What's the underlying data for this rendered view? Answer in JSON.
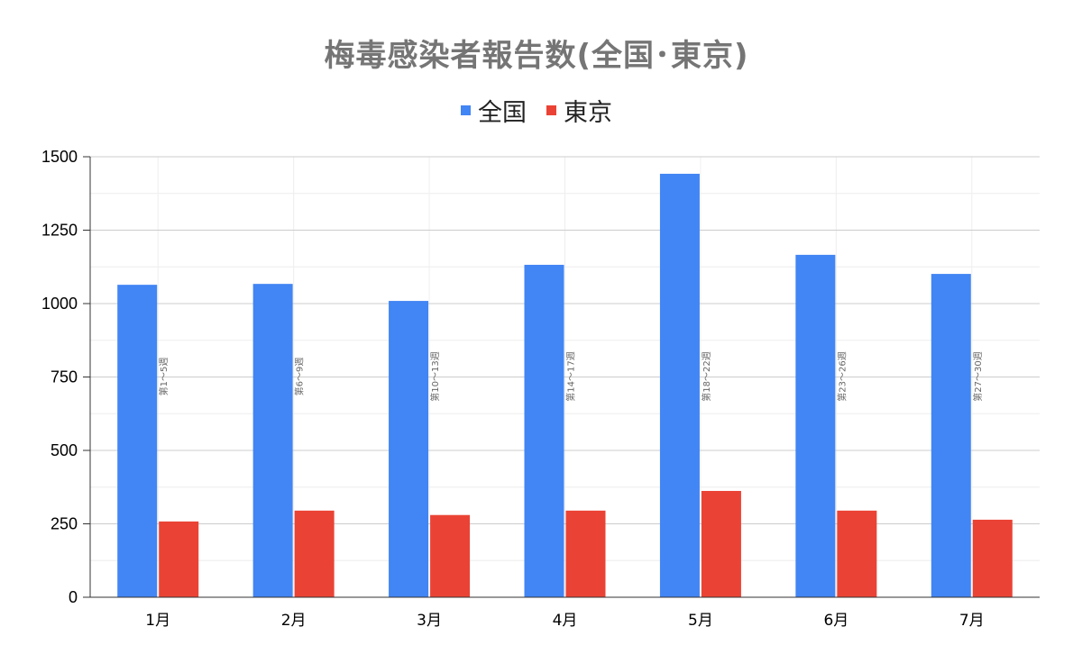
{
  "chart_data": {
    "type": "bar",
    "title": "梅毒感染者報告数(全国･東京)",
    "categories": [
      "1月",
      "2月",
      "3月",
      "4月",
      "5月",
      "6月",
      "7月"
    ],
    "series": [
      {
        "name": "全国",
        "color": "#4285f4",
        "values": [
          1064,
          1067,
          1009,
          1132,
          1442,
          1166,
          1101
        ]
      },
      {
        "name": "東京",
        "color": "#ea4335",
        "values": [
          258,
          295,
          280,
          295,
          362,
          295,
          264
        ]
      }
    ],
    "annotations": [
      "第1〜5週",
      "第6〜9週",
      "第10〜13週",
      "第14〜17週",
      "第18〜22週",
      "第23〜26週",
      "第27〜30週"
    ],
    "ylim": [
      0,
      1500
    ],
    "yticks": [
      0,
      250,
      500,
      750,
      1000,
      1250,
      1500
    ],
    "minor_grid": true,
    "legend_position": "top-center",
    "xlabel": "",
    "ylabel": ""
  }
}
